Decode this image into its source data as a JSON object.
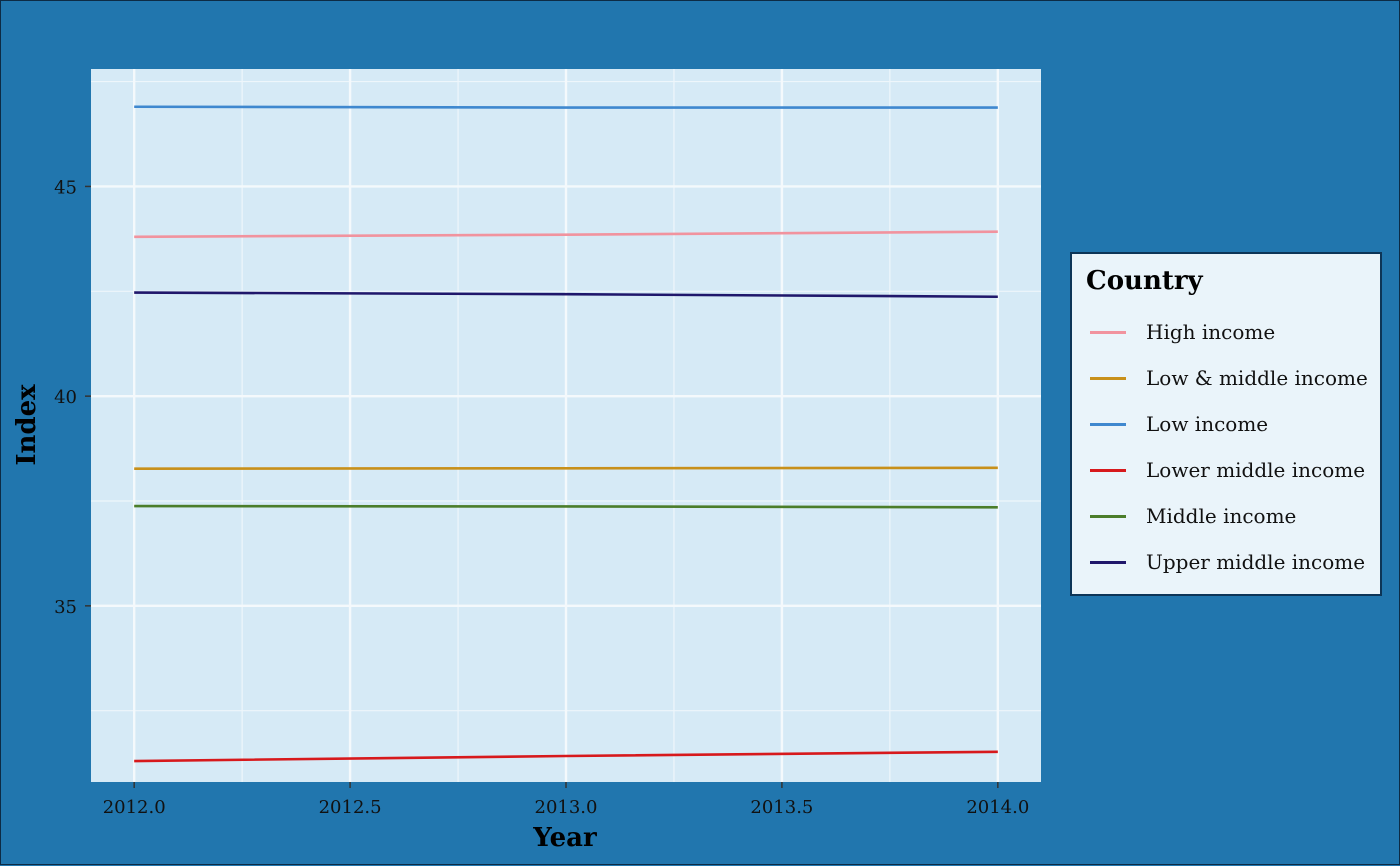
{
  "chart_data": {
    "type": "line",
    "title": "",
    "xlabel": "Year",
    "ylabel": "Index",
    "x": [
      2012,
      2013,
      2014
    ],
    "xlim": [
      2011.9,
      2014.1
    ],
    "ylim": [
      30.8,
      47.8
    ],
    "xticks": [
      "2012.0",
      "2012.5",
      "2013.0",
      "2013.5",
      "2014.0"
    ],
    "yticks": [
      "35",
      "40",
      "45"
    ],
    "grid": true,
    "legend_title": "Country",
    "legend_position": "right",
    "series": [
      {
        "name": "High income",
        "color": "#f1939e",
        "values": [
          43.8,
          43.85,
          43.92
        ]
      },
      {
        "name": "Low & middle income",
        "color": "#c8901a",
        "values": [
          38.27,
          38.28,
          38.29
        ]
      },
      {
        "name": "Low income",
        "color": "#3f88cf",
        "values": [
          46.9,
          46.88,
          46.88
        ]
      },
      {
        "name": "Lower middle income",
        "color": "#d7191c",
        "values": [
          31.3,
          31.42,
          31.52
        ]
      },
      {
        "name": "Middle income",
        "color": "#4b7d2a",
        "values": [
          37.38,
          37.37,
          37.35
        ]
      },
      {
        "name": "Upper middle income",
        "color": "#20176b",
        "values": [
          42.47,
          42.43,
          42.37
        ]
      }
    ]
  }
}
